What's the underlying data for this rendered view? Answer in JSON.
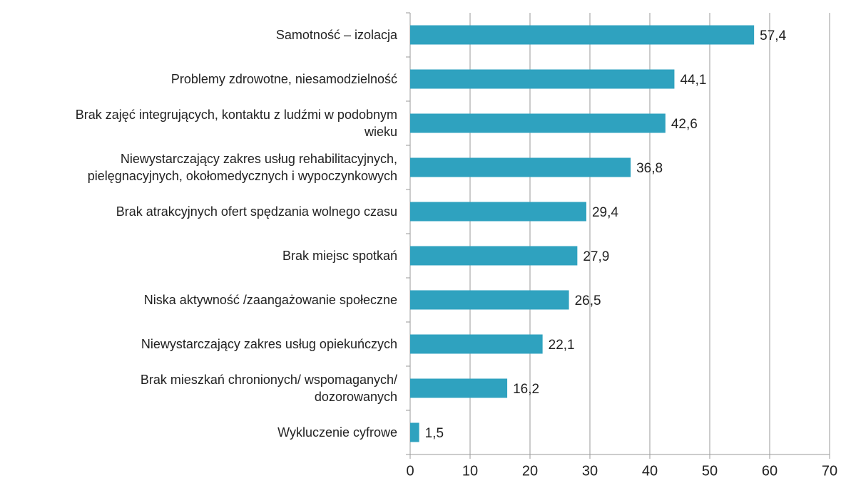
{
  "chart_data": {
    "type": "barh",
    "categories": [
      "Samotność – izolacja",
      "Problemy zdrowotne, niesamodzielność",
      "Brak zajęć integrujących, kontaktu z ludźmi w podobnym\nwieku",
      "Niewystarczający zakres usług rehabilitacyjnych,\npielęgnacyjnych, okołomedycznych i wypoczynkowych",
      "Brak atrakcyjnych ofert spędzania wolnego czasu",
      "Brak miejsc spotkań",
      "Niska aktywność /zaangażowanie społeczne",
      "Niewystarczający zakres usług opiekuńczych",
      "Brak mieszkań chronionych/ wspomaganych/\ndozorowanych",
      "Wykluczenie cyfrowe"
    ],
    "values": [
      57.4,
      44.1,
      42.6,
      36.8,
      29.4,
      27.9,
      26.5,
      22.1,
      16.2,
      1.5
    ],
    "value_labels": [
      "57,4",
      "44,1",
      "42,6",
      "36,8",
      "29,4",
      "27,9",
      "26,5",
      "22,1",
      "16,2",
      "1,5"
    ],
    "color": "#2fa2bf",
    "xlim": [
      0,
      70
    ],
    "xticks": [
      0,
      10,
      20,
      30,
      40,
      50,
      60,
      70
    ],
    "grid": true
  }
}
